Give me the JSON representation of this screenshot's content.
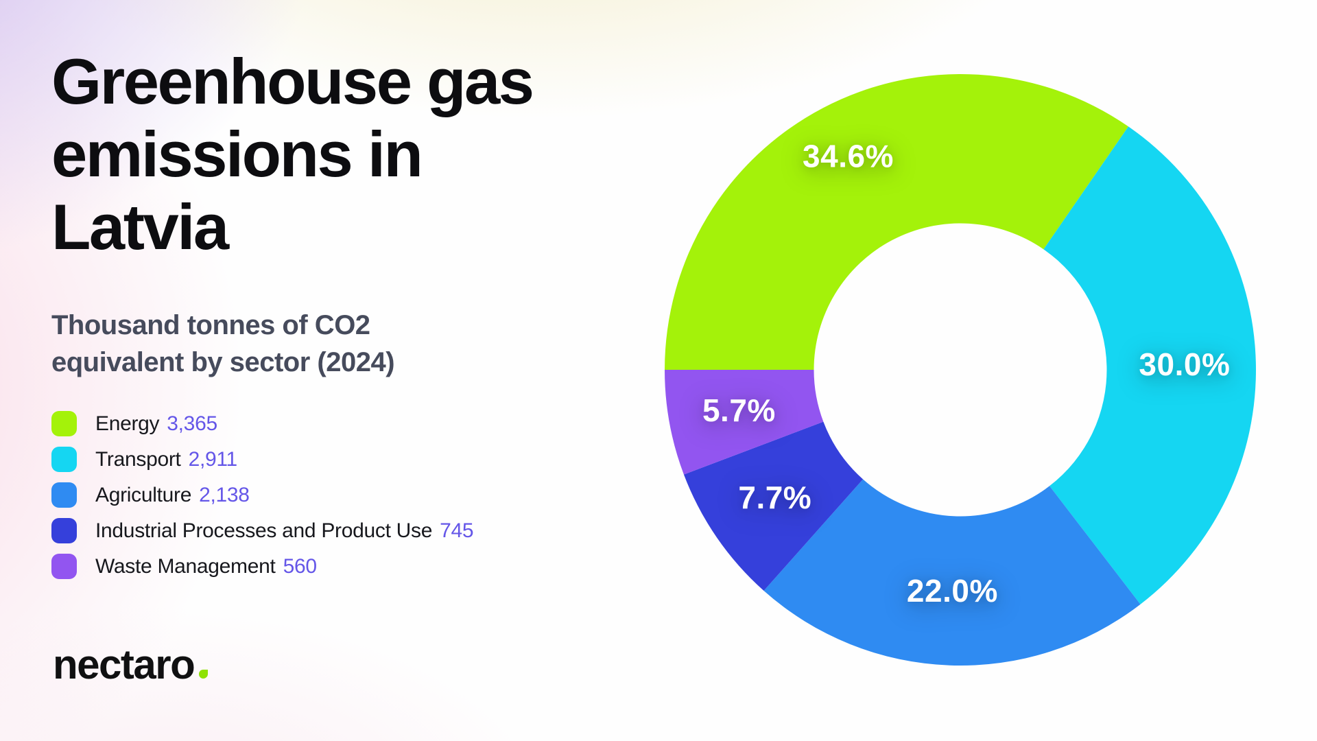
{
  "header": {
    "title": "Greenhouse gas\nemissions in Latvia",
    "subtitle": "Thousand tonnes of CO2\nequivalent by sector (2024)"
  },
  "legend": {
    "value_color": "#6456E8",
    "items": [
      {
        "label": "Energy",
        "value": "3,365",
        "color": "#A4F20A"
      },
      {
        "label": "Transport",
        "value": "2,911",
        "color": "#15D6F2"
      },
      {
        "label": "Agriculture",
        "value": "2,138",
        "color": "#2F8BF2"
      },
      {
        "label": "Industrial Processes and Product Use",
        "value": "745",
        "color": "#3540DB"
      },
      {
        "label": "Waste Management",
        "value": "560",
        "color": "#9255F0"
      }
    ]
  },
  "logo": {
    "text": "nectaro",
    "dot_color": "#8FE205"
  },
  "chart_data": {
    "type": "pie",
    "variant": "donut",
    "title": "Greenhouse gas emissions in Latvia",
    "subtitle": "Thousand tonnes of CO2 equivalent by sector (2024)",
    "categories": [
      "Energy",
      "Transport",
      "Agriculture",
      "Industrial Processes and Product Use",
      "Waste Management"
    ],
    "values": [
      3365,
      2911,
      2138,
      745,
      560
    ],
    "percent_labels": [
      "34.6%",
      "30.0%",
      "22.0%",
      "7.7%",
      "5.7%"
    ],
    "colors": [
      "#A4F20A",
      "#15D6F2",
      "#2F8BF2",
      "#3540DB",
      "#9255F0"
    ],
    "start_angle_deg": 270,
    "direction": "clockwise",
    "legend_position": "left",
    "label_color": "#FFFFFF"
  }
}
